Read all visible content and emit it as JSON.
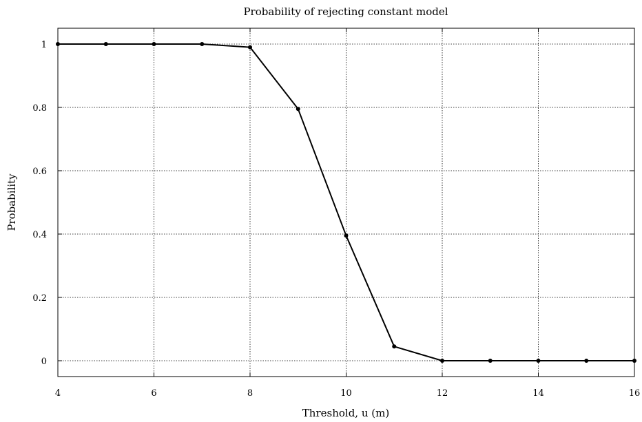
{
  "chart_data": {
    "type": "line",
    "title": "Probability of rejecting constant model",
    "xlabel": "Threshold, u (m)",
    "ylabel": "Probability",
    "xlim": [
      4,
      16
    ],
    "ylim": [
      -0.05,
      1.05
    ],
    "xticks": [
      4,
      6,
      8,
      10,
      12,
      14,
      16
    ],
    "yticks": [
      0,
      0.2,
      0.4,
      0.6,
      0.8,
      1
    ],
    "xtick_labels": [
      "4",
      "6",
      "8",
      "10",
      "12",
      "14",
      "16"
    ],
    "ytick_labels": [
      "0",
      "0.2",
      "0.4",
      "0.6",
      "0.8",
      "1"
    ],
    "grid": true,
    "legend": "none",
    "series": [
      {
        "x": [
          4,
          5,
          6,
          7,
          8,
          9,
          10,
          11,
          12,
          13,
          14,
          15,
          16
        ],
        "values": [
          1,
          1,
          1,
          1,
          0.99,
          0.795,
          0.395,
          0.045,
          0,
          0,
          0,
          0,
          0
        ],
        "color": "#000000",
        "marker": "circle"
      }
    ]
  }
}
